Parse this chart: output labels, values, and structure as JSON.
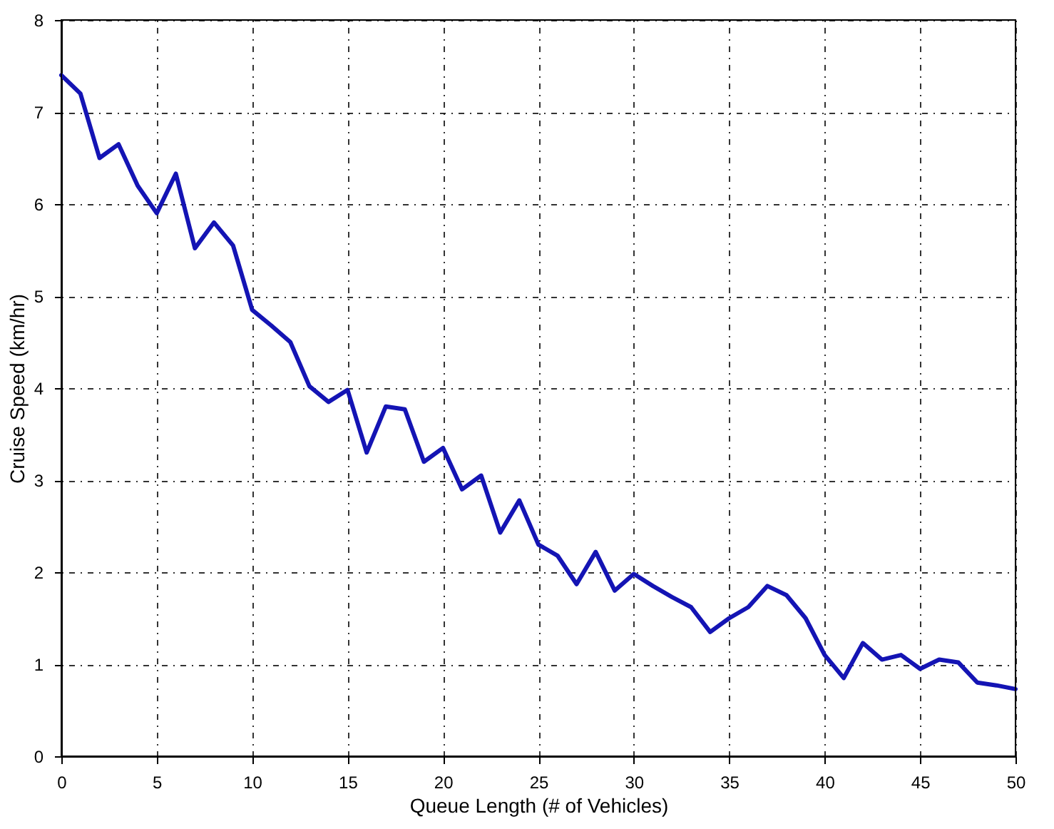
{
  "chart_data": {
    "type": "line",
    "xlabel": "Queue Length (# of Vehicles)",
    "ylabel": "Cruise Speed (km/hr)",
    "x": [
      0,
      1,
      2,
      3,
      4,
      5,
      6,
      7,
      8,
      9,
      10,
      11,
      12,
      13,
      14,
      15,
      16,
      17,
      18,
      19,
      20,
      21,
      22,
      23,
      24,
      25,
      26,
      27,
      28,
      29,
      30,
      31,
      32,
      33,
      34,
      35,
      36,
      37,
      38,
      39,
      40,
      41,
      42,
      43,
      44,
      45,
      46,
      47,
      48,
      49,
      50
    ],
    "series": [
      {
        "color": "#1414b4",
        "values": [
          7.4,
          7.2,
          6.5,
          6.65,
          6.2,
          5.9,
          6.33,
          5.52,
          5.8,
          5.55,
          4.85,
          4.68,
          4.5,
          4.02,
          3.85,
          3.98,
          3.3,
          3.8,
          3.77,
          3.2,
          3.35,
          2.9,
          3.05,
          2.43,
          2.78,
          2.3,
          2.18,
          1.87,
          2.22,
          1.8,
          1.98,
          1.85,
          1.73,
          1.62,
          1.35,
          1.5,
          1.62,
          1.85,
          1.75,
          1.5,
          1.1,
          0.85,
          1.23,
          1.05,
          1.1,
          0.95,
          1.05,
          1.02,
          0.8,
          0.77,
          0.73
        ]
      }
    ],
    "xlim": [
      0,
      50
    ],
    "ylim": [
      0,
      8
    ],
    "xticks": [
      0,
      5,
      10,
      15,
      20,
      25,
      30,
      35,
      40,
      45,
      50
    ],
    "yticks": [
      0,
      1,
      2,
      3,
      4,
      5,
      6,
      7,
      8
    ],
    "grid": true,
    "line_style": "solid",
    "marker": "none"
  }
}
